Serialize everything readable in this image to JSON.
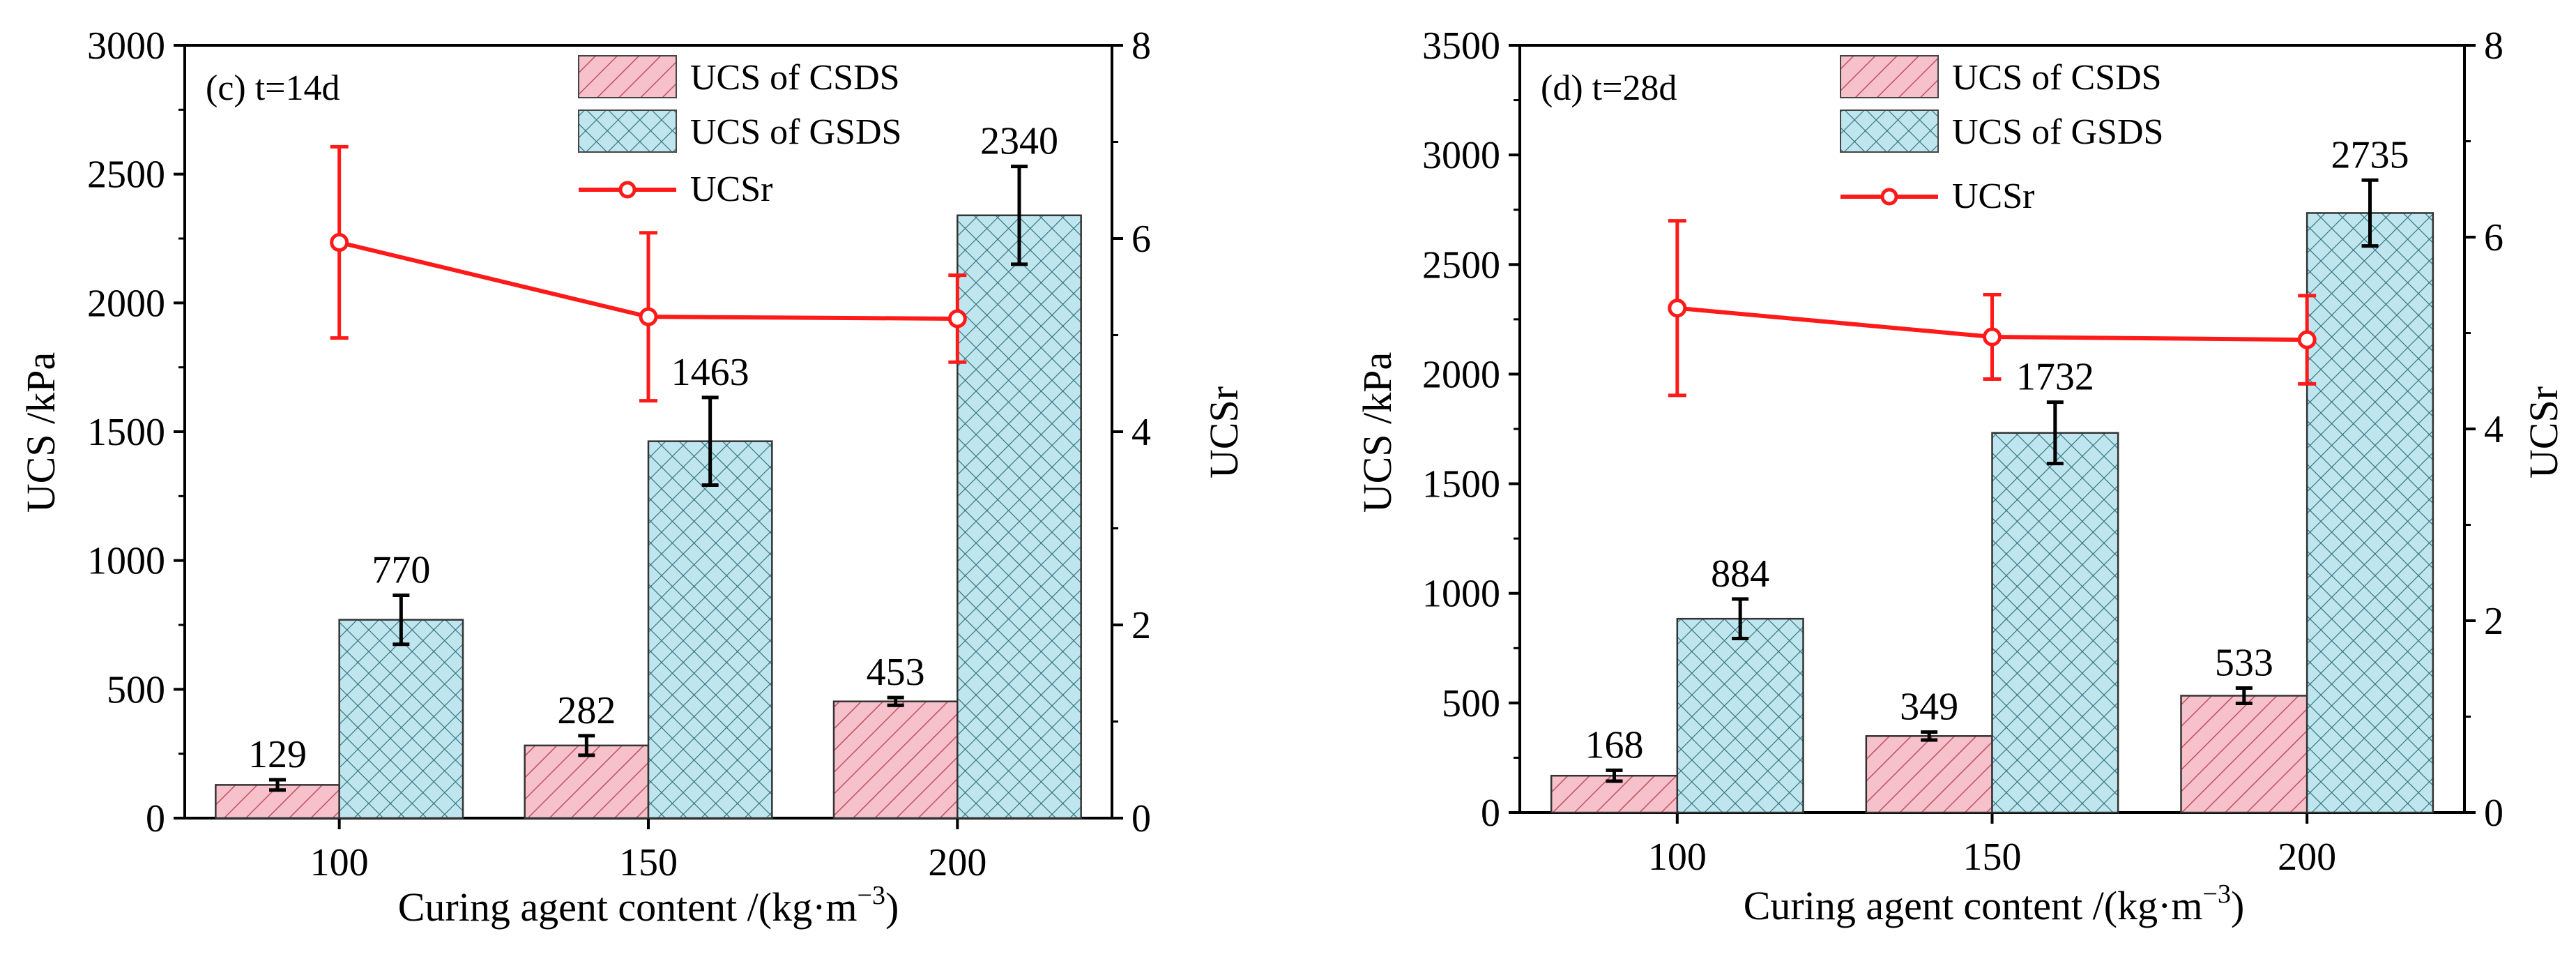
{
  "colors": {
    "csds_fill": "#f6c1cb",
    "gsds_fill": "#bfe6ee",
    "ucsr_line": "#ff1a1a",
    "axis": "#000000"
  },
  "chart_data": [
    {
      "type": "bar",
      "panel_label": "(c) t=14d",
      "title": "",
      "xlabel": "Curing agent content /(kg·m",
      "xlabel_exponent": "−3",
      "xlabel_close": ")",
      "ylabel": "UCS /kPa",
      "y2label": "UCSr",
      "categories": [
        "100",
        "150",
        "200"
      ],
      "ylim": [
        0,
        3000
      ],
      "y2lim": [
        0,
        8
      ],
      "yticks": [
        "0",
        "500",
        "1000",
        "1500",
        "2000",
        "2500",
        "3000"
      ],
      "y2ticks": [
        "0",
        "2",
        "4",
        "6",
        "8"
      ],
      "series": [
        {
          "name": "UCS of CSDS",
          "values": [
            129,
            282,
            453
          ],
          "labels": [
            "129",
            "282",
            "453"
          ],
          "errors": [
            20,
            38,
            15
          ]
        },
        {
          "name": "UCS of GSDS",
          "values": [
            770,
            1463,
            2340
          ],
          "labels": [
            "770",
            "1463",
            "2340"
          ],
          "errors": [
            95,
            170,
            190
          ]
        }
      ],
      "line_series": {
        "name": "UCSr",
        "axis": "right",
        "values": [
          5.96,
          5.19,
          5.17
        ],
        "errors": [
          0.99,
          0.87,
          0.45
        ]
      },
      "legend": "top-center"
    },
    {
      "type": "bar",
      "panel_label": "(d) t=28d",
      "title": "",
      "xlabel": "Curing agent content /(kg·m",
      "xlabel_exponent": "−3",
      "xlabel_close": ")",
      "ylabel": "UCS /kPa",
      "y2label": "UCSr",
      "categories": [
        "100",
        "150",
        "200"
      ],
      "ylim": [
        0,
        3500
      ],
      "y2lim": [
        0,
        8
      ],
      "yticks": [
        "0",
        "500",
        "1000",
        "1500",
        "2000",
        "2500",
        "3000",
        "3500"
      ],
      "y2ticks": [
        "0",
        "2",
        "4",
        "6",
        "8"
      ],
      "series": [
        {
          "name": "UCS of CSDS",
          "values": [
            168,
            349,
            533
          ],
          "labels": [
            "168",
            "349",
            "533"
          ],
          "errors": [
            25,
            18,
            35
          ]
        },
        {
          "name": "UCS of GSDS",
          "values": [
            884,
            1732,
            2735
          ],
          "labels": [
            "884",
            "1732",
            "2735"
          ],
          "errors": [
            90,
            140,
            150
          ]
        }
      ],
      "line_series": {
        "name": "UCSr",
        "axis": "right",
        "values": [
          5.26,
          4.96,
          4.93
        ],
        "errors": [
          0.91,
          0.44,
          0.46
        ]
      },
      "legend": "top-center"
    }
  ]
}
